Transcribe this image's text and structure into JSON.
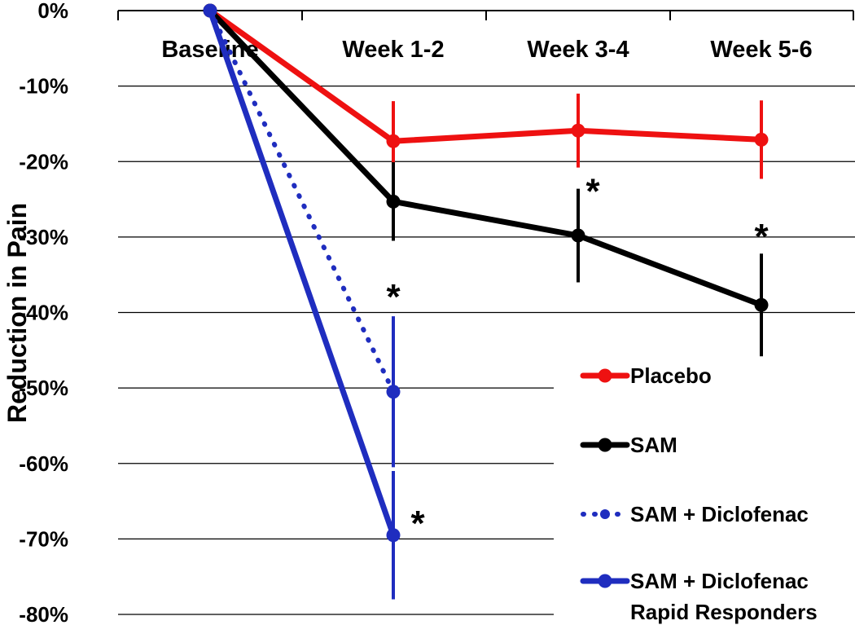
{
  "chart_data": {
    "type": "line",
    "title": "",
    "xlabel": "",
    "ylabel": "Reduction in Pain",
    "categories": [
      "Baseline",
      "Week 1-2",
      "Week 3-4",
      "Week 5-6"
    ],
    "ylim": [
      -0.8,
      0.0
    ],
    "yticks": [
      0,
      -0.1,
      -0.2,
      -0.3,
      -0.4,
      -0.5,
      -0.6,
      -0.7,
      -0.8
    ],
    "ytick_labels": [
      "0%",
      "-10%",
      "-20%",
      "-30%",
      "-40%",
      "-50%",
      "-60%",
      "-70%",
      "-80%"
    ],
    "grid": true,
    "legend_position": "bottom-right",
    "series": [
      {
        "name": "Placebo",
        "legend_label": [
          "Placebo"
        ],
        "color": "#ee1111",
        "dashed": false,
        "values": [
          0,
          -0.173,
          -0.159,
          -0.171
        ],
        "errors": [
          null,
          0.053,
          0.049,
          0.052
        ]
      },
      {
        "name": "SAM",
        "legend_label": [
          "SAM"
        ],
        "color": "#000000",
        "dashed": false,
        "values": [
          0,
          -0.253,
          -0.298,
          -0.39
        ],
        "errors": [
          null,
          0.052,
          0.062,
          0.068
        ]
      },
      {
        "name": "SAM + Diclofenac",
        "legend_label": [
          "SAM + Diclofenac"
        ],
        "color": "#1f2dbf",
        "dashed": true,
        "values": [
          0,
          -0.505,
          null,
          null
        ],
        "errors": [
          null,
          0.1,
          null,
          null
        ]
      },
      {
        "name": "SAM + Diclofenac Rapid Responders",
        "legend_label": [
          "SAM + Diclofenac",
          "Rapid Responders"
        ],
        "color": "#1f2dbf",
        "dashed": false,
        "values": [
          0,
          -0.695,
          null,
          null
        ],
        "errors": [
          null,
          0.085,
          null,
          null
        ]
      }
    ],
    "annotations": [
      {
        "text": "*",
        "category": "Week 1-2",
        "y": -0.365
      },
      {
        "text": "*",
        "category": "Week 1-2",
        "y": -0.665
      },
      {
        "text": "*",
        "category": "Week 3-4",
        "y": -0.225
      },
      {
        "text": "*",
        "category": "Week 5-6",
        "y": -0.285
      }
    ]
  }
}
